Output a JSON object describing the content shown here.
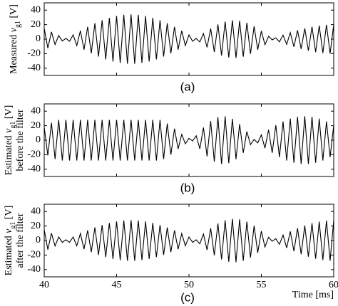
{
  "chart_data": [
    {
      "type": "line",
      "panel_label": "(a)",
      "ylabel": [
        "Measured ",
        "v",
        "g1",
        " [V]"
      ],
      "xlim": [
        40,
        60
      ],
      "xticks": [
        40,
        45,
        50,
        55,
        60
      ],
      "ylim": [
        -50,
        50
      ],
      "yticks": [
        -40,
        -20,
        0,
        20,
        40
      ],
      "color": "#000000",
      "x": [
        40,
        40.25,
        40.5,
        40.75,
        41,
        41.25,
        41.5,
        41.75,
        42,
        42.25,
        42.5,
        42.75,
        43,
        43.25,
        43.5,
        43.75,
        44,
        44.25,
        44.5,
        44.75,
        45,
        45.25,
        45.5,
        45.75,
        46,
        46.25,
        46.5,
        46.75,
        47,
        47.25,
        47.5,
        47.75,
        48,
        48.25,
        48.5,
        48.75,
        49,
        49.25,
        49.5,
        49.75,
        50,
        50.25,
        50.5,
        50.75,
        51,
        51.25,
        51.5,
        51.75,
        52,
        52.25,
        52.5,
        52.75,
        53,
        53.25,
        53.5,
        53.75,
        54,
        54.25,
        54.5,
        54.75,
        55,
        55.25,
        55.5,
        55.75,
        56,
        56.25,
        56.5,
        56.75,
        57,
        57.25,
        57.5,
        57.75,
        58,
        58.25,
        58.5,
        58.75,
        59,
        59.25,
        59.5,
        59.75,
        60
      ],
      "values": [
        15,
        -12.5,
        10,
        -7.5,
        5,
        -2.5,
        1,
        -3,
        5.9,
        -8.8,
        11.6,
        -14.5,
        17,
        -19.5,
        21.9,
        -24,
        26,
        -27.9,
        29.4,
        -30.8,
        31.9,
        -32.8,
        33.5,
        -33.9,
        34,
        -33.9,
        33.5,
        -32.8,
        31.9,
        -30.8,
        29.4,
        -27.9,
        26,
        -24,
        21.9,
        -19.5,
        17,
        -14.5,
        11.6,
        -8.8,
        5.9,
        -3,
        1,
        -3.9,
        7.7,
        -11.3,
        14.6,
        -17.7,
        20.3,
        -22.5,
        24.2,
        -25.3,
        25.9,
        -25.9,
        25.3,
        -24.2,
        22.5,
        -20.3,
        17.7,
        -14.6,
        11.3,
        -7.7,
        3.9,
        -1,
        1.8,
        -3.7,
        5.5,
        -7.2,
        8.9,
        -10.5,
        12.1,
        -13.5,
        14.8,
        -16,
        17,
        -17.9,
        18.6,
        -19.2,
        19.7,
        -19.9,
        20
      ]
    },
    {
      "type": "line",
      "panel_label": "(b)",
      "ylabel": [
        "Estimated ",
        "v",
        "g1",
        " [V]"
      ],
      "ylabel2": "before the filter",
      "xlim": [
        40,
        60
      ],
      "xticks": [
        40,
        45,
        50,
        55,
        60
      ],
      "ylim": [
        -50,
        50
      ],
      "yticks": [
        -40,
        -20,
        0,
        20,
        40
      ],
      "color": "#000000",
      "x": [
        40,
        40.25,
        40.5,
        40.75,
        41,
        41.25,
        41.5,
        41.75,
        42,
        42.25,
        42.5,
        42.75,
        43,
        43.25,
        43.5,
        43.75,
        44,
        44.25,
        44.5,
        44.75,
        45,
        45.25,
        45.5,
        45.75,
        46,
        46.25,
        46.5,
        46.75,
        47,
        47.25,
        47.5,
        47.75,
        48,
        48.25,
        48.5,
        48.75,
        49,
        49.25,
        49.5,
        49.75,
        50,
        50.25,
        50.5,
        50.75,
        51,
        51.25,
        51.5,
        51.75,
        52,
        52.25,
        52.5,
        52.75,
        53,
        53.25,
        53.5,
        53.75,
        54,
        54.25,
        54.5,
        54.75,
        55,
        55.25,
        55.5,
        55.75,
        56,
        56.25,
        56.5,
        56.75,
        57,
        57.25,
        57.5,
        57.75,
        58,
        58.25,
        58.5,
        58.75,
        59,
        59.25,
        59.5,
        59.75,
        60
      ],
      "values": [
        18,
        -21,
        24,
        -26,
        28,
        -28,
        28,
        -28,
        28,
        -28,
        28,
        -28,
        28,
        -28,
        28,
        -28,
        28,
        -28,
        28,
        -28,
        28,
        -28,
        28,
        -28,
        28,
        -28,
        28,
        -28,
        28,
        -28,
        28,
        -28,
        28,
        -26,
        23,
        -20,
        16,
        -12,
        8,
        -5,
        2.5,
        -1,
        6.1,
        -11.9,
        17.4,
        -22.2,
        26.3,
        -29.5,
        31.7,
        -32.9,
        32.9,
        -31.7,
        29.5,
        -26.3,
        22.2,
        -17.4,
        11.9,
        -6.1,
        1,
        -3.7,
        7.3,
        -10.9,
        14.3,
        -17.5,
        20.6,
        -23.3,
        25.8,
        -28,
        29.7,
        -31.1,
        32.2,
        -32.8,
        33,
        -32.8,
        32.2,
        -31.1,
        29.7,
        -28,
        25.8,
        -23.3,
        20.6
      ]
    },
    {
      "type": "line",
      "panel_label": "(c)",
      "ylabel": [
        "Estimated ",
        "v",
        "g1",
        " [V]"
      ],
      "ylabel2": "after the filter",
      "xlabel": "Time [ms]",
      "xlim": [
        40,
        60
      ],
      "xticks": [
        40,
        45,
        50,
        55,
        60
      ],
      "ylim": [
        -50,
        50
      ],
      "yticks": [
        -40,
        -20,
        0,
        20,
        40
      ],
      "color": "#000000",
      "x": [
        40,
        40.25,
        40.5,
        40.75,
        41,
        41.25,
        41.5,
        41.75,
        42,
        42.25,
        42.5,
        42.75,
        43,
        43.25,
        43.5,
        43.75,
        44,
        44.25,
        44.5,
        44.75,
        45,
        45.25,
        45.5,
        45.75,
        46,
        46.25,
        46.5,
        46.75,
        47,
        47.25,
        47.5,
        47.75,
        48,
        48.25,
        48.5,
        48.75,
        49,
        49.25,
        49.5,
        49.75,
        50,
        50.25,
        50.5,
        50.75,
        51,
        51.25,
        51.5,
        51.75,
        52,
        52.25,
        52.5,
        52.75,
        53,
        53.25,
        53.5,
        53.75,
        54,
        54.25,
        54.5,
        54.75,
        55,
        55.25,
        55.5,
        55.75,
        56,
        56.25,
        56.5,
        56.75,
        57,
        57.25,
        57.5,
        57.75,
        58,
        58.25,
        58.5,
        58.75,
        59,
        59.25,
        59.5,
        59.75,
        60
      ],
      "values": [
        15,
        -12.5,
        10,
        -7.5,
        5,
        -2.5,
        1,
        -2.4,
        4.9,
        -7.2,
        9.6,
        -11.9,
        14,
        -16,
        18,
        -19.8,
        21.4,
        -22.9,
        24.2,
        -25.4,
        26.3,
        -27,
        27.6,
        -27.9,
        28,
        -27.9,
        27.6,
        -27,
        26.3,
        -25.4,
        24.2,
        -22.9,
        21.4,
        -19.8,
        18,
        -16,
        14,
        -11.9,
        9.6,
        -7.2,
        4.9,
        -2.4,
        1,
        -4.5,
        8.9,
        -13,
        16.9,
        -20.4,
        23.5,
        -26,
        27.9,
        -29.2,
        29.9,
        -29.9,
        29.2,
        -27.9,
        26,
        -23.5,
        20.4,
        -16.9,
        13,
        -8.9,
        4.5,
        -1,
        2.6,
        -5.2,
        7.6,
        -10.1,
        12.5,
        -14.7,
        16.9,
        -18.9,
        20.7,
        -22.3,
        23.8,
        -25.1,
        26.1,
        -26.9,
        27.5,
        -27.9,
        28
      ]
    }
  ]
}
